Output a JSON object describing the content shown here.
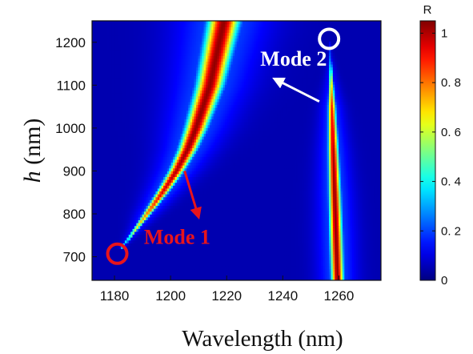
{
  "chart_data": {
    "type": "heatmap",
    "title": "",
    "xlabel": "Wavelength (nm)",
    "ylabel_symbol": "h",
    "ylabel_unit": " (nm)",
    "xlim": [
      1172,
      1275
    ],
    "ylim": [
      645,
      1250
    ],
    "xticks": [
      1180,
      1200,
      1220,
      1240,
      1260
    ],
    "yticks": [
      700,
      800,
      900,
      1000,
      1100,
      1200
    ],
    "colorbar": {
      "label": "R",
      "range": [
        0,
        1.05
      ],
      "ticks": [
        0,
        0.2,
        0.4,
        0.6,
        0.8,
        1
      ],
      "tick_labels": [
        "0",
        "0. 2",
        "0. 4",
        "0. 6",
        "0. 8",
        "1"
      ],
      "colormap": "jet"
    },
    "background_value": 0.05,
    "modes": [
      {
        "label": "Mode 1",
        "color": "#e8141c",
        "ridge": [
          {
            "h": 720,
            "wavelength": 1182.5,
            "width": 0.25,
            "peak": 0.35
          },
          {
            "h": 760,
            "wavelength": 1187,
            "width": 0.6,
            "peak": 0.6
          },
          {
            "h": 800,
            "wavelength": 1191.5,
            "width": 1.0,
            "peak": 0.8
          },
          {
            "h": 850,
            "wavelength": 1197,
            "width": 1.4,
            "peak": 0.95
          },
          {
            "h": 900,
            "wavelength": 1202,
            "width": 1.8,
            "peak": 1.0
          },
          {
            "h": 950,
            "wavelength": 1206,
            "width": 2.2,
            "peak": 1.02
          },
          {
            "h": 1000,
            "wavelength": 1209,
            "width": 2.6,
            "peak": 1.03
          },
          {
            "h": 1100,
            "wavelength": 1214,
            "width": 3.2,
            "peak": 1.03
          },
          {
            "h": 1250,
            "wavelength": 1219,
            "width": 3.8,
            "peak": 1.03
          }
        ],
        "marker": {
          "wavelength": 1181,
          "h": 707
        }
      },
      {
        "label": "Mode 2",
        "color": "#ffffff",
        "ridge": [
          {
            "h": 645,
            "wavelength": 1259.5,
            "width": 1.5,
            "peak": 1.03
          },
          {
            "h": 750,
            "wavelength": 1259,
            "width": 1.5,
            "peak": 1.03
          },
          {
            "h": 850,
            "wavelength": 1258.5,
            "width": 1.4,
            "peak": 1.03
          },
          {
            "h": 950,
            "wavelength": 1258,
            "width": 1.2,
            "peak": 1.0
          },
          {
            "h": 1050,
            "wavelength": 1257.5,
            "width": 0.9,
            "peak": 0.9
          },
          {
            "h": 1120,
            "wavelength": 1257.2,
            "width": 0.5,
            "peak": 0.6
          },
          {
            "h": 1170,
            "wavelength": 1257,
            "width": 0.25,
            "peak": 0.3
          },
          {
            "h": 1200,
            "wavelength": 1256.8,
            "width": 0.1,
            "peak": 0.1
          }
        ],
        "marker": {
          "wavelength": 1256.5,
          "h": 1208
        }
      }
    ],
    "annotations": [
      {
        "text": "Mode 1",
        "color": "#e8141c",
        "x": 1190.5,
        "y": 730,
        "arrow_from": [
          1205,
          900
        ],
        "arrow_to": [
          1210,
          792
        ]
      },
      {
        "text": "Mode 2",
        "color": "#ffffff",
        "x": 1232,
        "y": 1145,
        "arrow_from": [
          1253,
          1062
        ],
        "arrow_to": [
          1237,
          1115
        ]
      }
    ]
  }
}
